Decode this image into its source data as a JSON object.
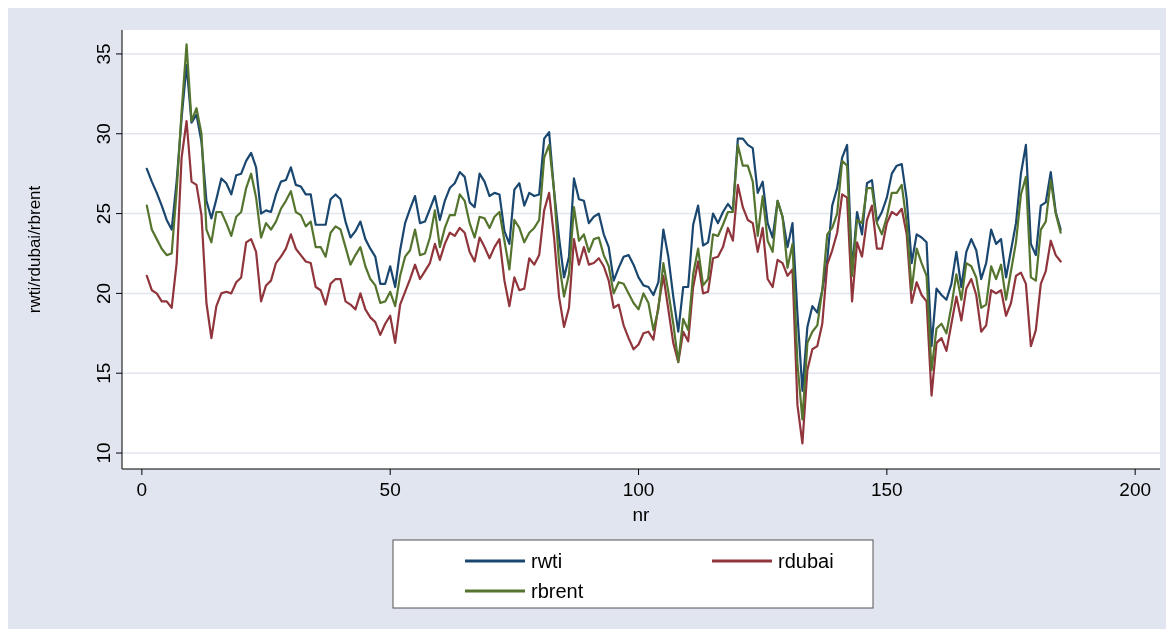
{
  "chart_data": {
    "type": "line",
    "xlabel": "nr",
    "ylabel": "rwti/rdubai/rbrent",
    "x": [
      1,
      2,
      3,
      4,
      5,
      6,
      7,
      8,
      9,
      10,
      11,
      12,
      13,
      14,
      15,
      16,
      17,
      18,
      19,
      20,
      21,
      22,
      23,
      24,
      25,
      26,
      27,
      28,
      29,
      30,
      31,
      32,
      33,
      34,
      35,
      36,
      37,
      38,
      39,
      40,
      41,
      42,
      43,
      44,
      45,
      46,
      47,
      48,
      49,
      50,
      51,
      52,
      53,
      54,
      55,
      56,
      57,
      58,
      59,
      60,
      61,
      62,
      63,
      64,
      65,
      66,
      67,
      68,
      69,
      70,
      71,
      72,
      73,
      74,
      75,
      76,
      77,
      78,
      79,
      80,
      81,
      82,
      83,
      84,
      85,
      86,
      87,
      88,
      89,
      90,
      91,
      92,
      93,
      94,
      95,
      96,
      97,
      98,
      99,
      100,
      101,
      102,
      103,
      104,
      105,
      106,
      107,
      108,
      109,
      110,
      111,
      112,
      113,
      114,
      115,
      116,
      117,
      118,
      119,
      120,
      121,
      122,
      123,
      124,
      125,
      126,
      127,
      128,
      129,
      130,
      131,
      132,
      133,
      134,
      135,
      136,
      137,
      138,
      139,
      140,
      141,
      142,
      143,
      144,
      145,
      146,
      147,
      148,
      149,
      150,
      151,
      152,
      153,
      154,
      155,
      156,
      157,
      158,
      159,
      160,
      161,
      162,
      163,
      164,
      165,
      166,
      167,
      168,
      169,
      170,
      171,
      172,
      173,
      174,
      175,
      176,
      177,
      178,
      179,
      180,
      181,
      182,
      183,
      184,
      185
    ],
    "series": [
      {
        "name": "rwti",
        "color": "#1a476f",
        "values": [
          27.8,
          27.0,
          26.3,
          25.5,
          24.6,
          24.0,
          27.0,
          31.0,
          34.3,
          30.7,
          31.2,
          29.5,
          25.8,
          24.7,
          25.9,
          27.2,
          26.9,
          26.2,
          27.4,
          27.5,
          28.3,
          28.8,
          27.9,
          25.0,
          25.2,
          25.1,
          26.2,
          27.0,
          27.1,
          27.9,
          26.8,
          26.7,
          26.2,
          26.2,
          24.3,
          24.3,
          24.3,
          25.9,
          26.2,
          25.9,
          24.5,
          23.5,
          23.9,
          24.5,
          23.4,
          22.8,
          22.3,
          20.6,
          20.6,
          21.7,
          20.4,
          22.7,
          24.4,
          25.3,
          26.1,
          24.4,
          24.5,
          25.3,
          26.1,
          24.6,
          25.8,
          26.6,
          26.9,
          27.6,
          27.3,
          25.7,
          25.4,
          27.5,
          27.0,
          26.1,
          26.3,
          26.2,
          23.9,
          23.1,
          26.5,
          26.9,
          25.5,
          26.3,
          26.1,
          26.2,
          29.7,
          30.1,
          26.4,
          23.5,
          21.0,
          22.3,
          27.2,
          25.9,
          25.8,
          24.4,
          24.8,
          25.0,
          23.7,
          22.9,
          20.8,
          21.6,
          22.3,
          22.4,
          21.8,
          21.0,
          20.5,
          20.4,
          19.9,
          20.7,
          24.0,
          22.3,
          19.8,
          17.6,
          20.4,
          20.4,
          24.3,
          25.5,
          23.0,
          23.2,
          25.0,
          24.4,
          25.1,
          25.6,
          25.2,
          29.7,
          29.7,
          29.3,
          29.1,
          26.3,
          27.0,
          24.4,
          23.5,
          25.8,
          24.8,
          22.9,
          24.4,
          18.7,
          13.9,
          17.9,
          19.2,
          18.8,
          20.2,
          22.1,
          25.5,
          26.6,
          28.5,
          29.3,
          21.4,
          25.1,
          23.7,
          26.9,
          27.1,
          24.5,
          25.1,
          26.0,
          27.5,
          28.0,
          28.1,
          25.9,
          21.9,
          23.7,
          23.5,
          23.2,
          16.7,
          20.3,
          19.9,
          19.6,
          20.6,
          22.6,
          20.4,
          22.6,
          23.4,
          22.7,
          20.9,
          21.9,
          24.0,
          23.1,
          23.4,
          21.0,
          22.7,
          24.4,
          27.5,
          29.3,
          23.1,
          22.4,
          25.5,
          25.7,
          27.6,
          25.1,
          24.0
        ]
      },
      {
        "name": "rdubai",
        "color": "#90353b",
        "values": [
          21.1,
          20.2,
          20.0,
          19.5,
          19.5,
          19.1,
          21.9,
          28.5,
          30.8,
          27.0,
          26.8,
          24.9,
          19.4,
          17.2,
          19.2,
          20.0,
          20.1,
          20.0,
          20.7,
          21.0,
          23.2,
          23.4,
          22.6,
          19.5,
          20.5,
          20.8,
          21.9,
          22.3,
          22.8,
          23.7,
          22.8,
          22.4,
          22.0,
          21.9,
          20.4,
          20.2,
          19.3,
          20.6,
          20.9,
          20.9,
          19.5,
          19.3,
          19.0,
          20.0,
          19.0,
          18.5,
          18.2,
          17.4,
          18.1,
          18.6,
          16.9,
          19.3,
          20.1,
          20.9,
          21.8,
          20.9,
          21.4,
          21.9,
          23.1,
          22.1,
          23.1,
          23.8,
          23.6,
          24.1,
          23.8,
          22.6,
          22.0,
          23.5,
          22.9,
          22.2,
          22.9,
          23.4,
          20.8,
          19.2,
          21.0,
          20.2,
          20.3,
          22.2,
          21.8,
          22.4,
          25.2,
          26.3,
          23.5,
          19.8,
          17.9,
          19.1,
          23.4,
          21.8,
          22.9,
          21.8,
          21.9,
          22.2,
          21.7,
          20.8,
          19.1,
          19.3,
          18.0,
          17.2,
          16.5,
          16.8,
          17.5,
          17.6,
          17.1,
          19.2,
          21.1,
          19.0,
          16.9,
          15.7,
          17.6,
          17.0,
          20.4,
          22.0,
          20.0,
          20.1,
          22.2,
          22.3,
          22.9,
          24.1,
          23.3,
          26.8,
          25.4,
          24.6,
          24.4,
          22.6,
          24.1,
          20.9,
          20.4,
          22.1,
          21.9,
          21.1,
          21.5,
          13.0,
          10.6,
          15.2,
          16.5,
          16.7,
          18.1,
          21.8,
          22.7,
          23.8,
          26.2,
          26.0,
          19.5,
          23.2,
          22.3,
          24.6,
          25.5,
          22.8,
          22.8,
          24.4,
          25.1,
          24.9,
          25.3,
          23.7,
          19.4,
          20.7,
          19.9,
          19.5,
          13.6,
          16.9,
          17.2,
          16.4,
          18.1,
          19.8,
          18.3,
          20.3,
          20.9,
          19.9,
          17.6,
          18.0,
          20.2,
          20.0,
          20.2,
          18.6,
          19.4,
          21.1,
          21.3,
          20.6,
          16.7,
          17.7,
          20.6,
          21.4,
          23.3,
          22.4,
          22.0
        ]
      },
      {
        "name": "rbrent",
        "color": "#55752f",
        "values": [
          25.5,
          24.0,
          23.4,
          22.8,
          22.4,
          22.5,
          26.4,
          31.4,
          35.6,
          30.8,
          31.6,
          30.0,
          24.0,
          23.2,
          25.1,
          25.1,
          24.4,
          23.6,
          24.8,
          25.1,
          26.6,
          27.5,
          26.0,
          23.5,
          24.4,
          24.0,
          24.5,
          25.3,
          25.8,
          26.4,
          25.1,
          24.9,
          24.2,
          24.5,
          22.9,
          22.9,
          22.3,
          23.8,
          24.2,
          24.0,
          22.9,
          21.8,
          22.4,
          22.9,
          21.7,
          20.9,
          20.5,
          19.4,
          19.5,
          20.1,
          19.2,
          21.1,
          22.3,
          22.7,
          24.0,
          22.4,
          22.5,
          23.5,
          25.2,
          22.9,
          24.1,
          24.9,
          24.9,
          26.2,
          25.8,
          24.4,
          23.5,
          24.8,
          24.7,
          24.1,
          24.8,
          25.1,
          23.3,
          21.5,
          24.6,
          24.1,
          23.2,
          23.8,
          24.1,
          24.6,
          28.5,
          29.3,
          26.4,
          21.9,
          19.8,
          21.2,
          25.4,
          23.3,
          23.7,
          22.6,
          23.4,
          23.5,
          22.4,
          21.7,
          20.0,
          20.7,
          20.6,
          20.0,
          19.4,
          19.0,
          20.0,
          19.4,
          17.7,
          19.0,
          21.9,
          20.1,
          18.1,
          15.7,
          18.4,
          17.7,
          21.2,
          22.8,
          20.5,
          20.9,
          23.7,
          23.6,
          24.3,
          25.1,
          25.1,
          29.3,
          28.0,
          28.0,
          27.0,
          23.6,
          26.1,
          23.3,
          22.6,
          25.8,
          24.8,
          21.6,
          23.1,
          15.6,
          12.1,
          16.9,
          17.6,
          18.0,
          20.2,
          23.7,
          24.1,
          25.0,
          28.3,
          28.0,
          21.1,
          24.6,
          24.4,
          26.6,
          26.6,
          24.4,
          23.7,
          24.8,
          26.3,
          26.3,
          26.8,
          24.4,
          20.2,
          22.8,
          21.9,
          21.1,
          15.2,
          17.8,
          18.1,
          17.5,
          19.2,
          21.2,
          19.6,
          21.9,
          21.7,
          21.0,
          19.1,
          19.3,
          21.7,
          20.9,
          21.8,
          19.6,
          21.4,
          23.2,
          26.2,
          27.3,
          21.0,
          20.8,
          24.0,
          24.5,
          27.1,
          25.0,
          23.8
        ]
      }
    ],
    "xlim": [
      -4,
      205
    ],
    "xticks": [
      0,
      50,
      100,
      150,
      200
    ],
    "ylim": [
      9,
      36.5
    ],
    "yticks": [
      10,
      15,
      20,
      25,
      30,
      35
    ],
    "grid": "y",
    "legend": "bottom"
  }
}
